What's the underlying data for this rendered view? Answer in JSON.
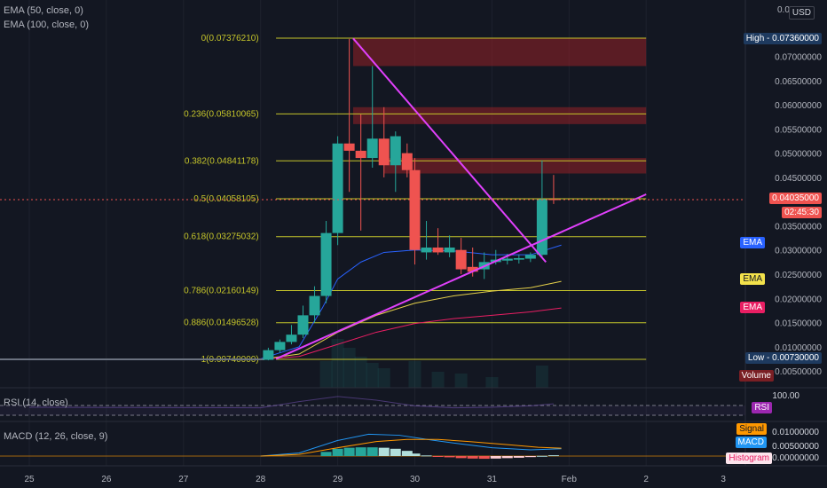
{
  "indicators": {
    "ema50": "EMA (50, close, 0)",
    "ema100": "EMA (100, close, 0)",
    "rsi": "RSI (14, close)",
    "macd": "MACD (12, 26, close, 9)"
  },
  "currency_button": "USD",
  "fib_levels": [
    {
      "label": "0(0.07376210)",
      "value": 0.0737621
    },
    {
      "label": "0.236(0.05810065)",
      "value": 0.05810065
    },
    {
      "label": "0.382(0.04841178)",
      "value": 0.04841178
    },
    {
      "label": "0.5(0.04058105)",
      "value": 0.04058105
    },
    {
      "label": "0.618(0.03275032)",
      "value": 0.03275032
    },
    {
      "label": "0.786(0.02160149)",
      "value": 0.02160149
    },
    {
      "label": "0.886(0.01496528)",
      "value": 0.01496528
    },
    {
      "label": "1(0.00740000)",
      "value": 0.0074
    }
  ],
  "price_axis": {
    "ticks": [
      "0.07000000",
      "0.06500000",
      "0.06000000",
      "0.05500000",
      "0.05000000",
      "0.04500000",
      "0.03500000",
      "0.03000000",
      "0.02500000",
      "0.02000000",
      "0.01500000",
      "0.01000000",
      "0.00500000"
    ],
    "top_partial": "0.0"
  },
  "axis_labels": {
    "high": "High - 0.07360000",
    "low": "Low - 0.00730000",
    "current_price": "0.04035000",
    "countdown": "02:45:30",
    "ema_blue": "EMA",
    "ema_yellow": "EMA",
    "ema_pink": "EMA",
    "volume": "Volume",
    "rsi": "RSI",
    "rsi_top": "100.00",
    "signal": "Signal",
    "macd": "MACD",
    "histogram": "Histogram",
    "macd_tick_1": "0.01000000",
    "macd_tick_2": "0.00500000",
    "macd_tick_3": "0.00000000"
  },
  "time_axis": [
    "25",
    "26",
    "27",
    "28",
    "29",
    "30",
    "31",
    "Feb",
    "2",
    "3"
  ],
  "colors": {
    "up": "#26a69a",
    "down": "#ef5350",
    "fib": "#c5c52a",
    "trend": "#e040fb",
    "ema_blue": "#2962ff",
    "ema_yellow": "#e5d04a",
    "ema_pink": "#e91e63"
  },
  "chart_data": {
    "type": "candlestick",
    "ylim": [
      0.0,
      0.0765
    ],
    "candles": [
      {
        "t": 28.1,
        "o": 0.0073,
        "h": 0.0098,
        "l": 0.0072,
        "c": 0.0093
      },
      {
        "t": 28.25,
        "o": 0.0093,
        "h": 0.0115,
        "l": 0.0088,
        "c": 0.011
      },
      {
        "t": 28.4,
        "o": 0.011,
        "h": 0.0145,
        "l": 0.0105,
        "c": 0.0125
      },
      {
        "t": 28.55,
        "o": 0.0125,
        "h": 0.0185,
        "l": 0.0118,
        "c": 0.0165
      },
      {
        "t": 28.7,
        "o": 0.0165,
        "h": 0.0225,
        "l": 0.015,
        "c": 0.0205
      },
      {
        "t": 28.85,
        "o": 0.0205,
        "h": 0.036,
        "l": 0.019,
        "c": 0.0335
      },
      {
        "t": 29.0,
        "o": 0.0335,
        "h": 0.0535,
        "l": 0.031,
        "c": 0.052
      },
      {
        "t": 29.15,
        "o": 0.052,
        "h": 0.0736,
        "l": 0.042,
        "c": 0.0505
      },
      {
        "t": 29.3,
        "o": 0.0505,
        "h": 0.058,
        "l": 0.034,
        "c": 0.049
      },
      {
        "t": 29.45,
        "o": 0.049,
        "h": 0.068,
        "l": 0.047,
        "c": 0.053
      },
      {
        "t": 29.6,
        "o": 0.053,
        "h": 0.0595,
        "l": 0.045,
        "c": 0.0475
      },
      {
        "t": 29.75,
        "o": 0.0475,
        "h": 0.0545,
        "l": 0.042,
        "c": 0.0535
      },
      {
        "t": 29.9,
        "o": 0.05,
        "h": 0.052,
        "l": 0.045,
        "c": 0.0465
      },
      {
        "t": 30.0,
        "o": 0.0465,
        "h": 0.049,
        "l": 0.027,
        "c": 0.03
      },
      {
        "t": 30.15,
        "o": 0.0295,
        "h": 0.036,
        "l": 0.028,
        "c": 0.0305
      },
      {
        "t": 30.3,
        "o": 0.0305,
        "h": 0.0345,
        "l": 0.029,
        "c": 0.0295
      },
      {
        "t": 30.45,
        "o": 0.0295,
        "h": 0.033,
        "l": 0.0285,
        "c": 0.0305
      },
      {
        "t": 30.6,
        "o": 0.03,
        "h": 0.0325,
        "l": 0.025,
        "c": 0.026
      },
      {
        "t": 30.75,
        "o": 0.0265,
        "h": 0.0305,
        "l": 0.0245,
        "c": 0.0255
      },
      {
        "t": 30.9,
        "o": 0.026,
        "h": 0.0295,
        "l": 0.024,
        "c": 0.0275
      },
      {
        "t": 31.05,
        "o": 0.0275,
        "h": 0.03,
        "l": 0.027,
        "c": 0.028
      },
      {
        "t": 31.2,
        "o": 0.0278,
        "h": 0.0292,
        "l": 0.027,
        "c": 0.0282
      },
      {
        "t": 31.35,
        "o": 0.028,
        "h": 0.029,
        "l": 0.0272,
        "c": 0.0283
      },
      {
        "t": 31.5,
        "o": 0.0282,
        "h": 0.0295,
        "l": 0.0275,
        "c": 0.029
      },
      {
        "t": 31.65,
        "o": 0.029,
        "h": 0.0485,
        "l": 0.0285,
        "c": 0.0405
      },
      {
        "t": 31.8,
        "o": 0.0405,
        "h": 0.0455,
        "l": 0.0395,
        "c": 0.0404
      }
    ],
    "ema_series": [
      {
        "color": "ema_blue",
        "points": [
          [
            28.0,
            0.0075
          ],
          [
            28.5,
            0.01
          ],
          [
            28.8,
            0.018
          ],
          [
            29.0,
            0.024
          ],
          [
            29.3,
            0.0275
          ],
          [
            29.6,
            0.0295
          ],
          [
            30.0,
            0.03
          ],
          [
            30.5,
            0.0298
          ],
          [
            31.0,
            0.029
          ],
          [
            31.5,
            0.029
          ],
          [
            31.9,
            0.031
          ]
        ]
      },
      {
        "color": "ema_yellow",
        "points": [
          [
            28.0,
            0.0074
          ],
          [
            28.5,
            0.0085
          ],
          [
            29.0,
            0.013
          ],
          [
            29.5,
            0.0165
          ],
          [
            30.0,
            0.019
          ],
          [
            30.5,
            0.0205
          ],
          [
            31.0,
            0.0215
          ],
          [
            31.5,
            0.0222
          ],
          [
            31.9,
            0.0235
          ]
        ]
      },
      {
        "color": "ema_pink",
        "points": [
          [
            28.0,
            0.0074
          ],
          [
            28.5,
            0.008
          ],
          [
            29.0,
            0.0105
          ],
          [
            29.5,
            0.013
          ],
          [
            30.0,
            0.0148
          ],
          [
            30.5,
            0.0158
          ],
          [
            31.0,
            0.0165
          ],
          [
            31.5,
            0.0172
          ],
          [
            31.9,
            0.018
          ]
        ]
      }
    ],
    "trendlines": [
      {
        "from": [
          29.2,
          0.0737
        ],
        "to": [
          31.7,
          0.0275
        ]
      },
      {
        "from": [
          28.2,
          0.0075
        ],
        "to": [
          33.0,
          0.0415
        ]
      }
    ],
    "zones": [
      {
        "t0": 29.2,
        "t1": 33.0,
        "y0": 0.068,
        "y1": 0.0737
      },
      {
        "t0": 29.2,
        "t1": 33.0,
        "y0": 0.056,
        "y1": 0.0595
      },
      {
        "t0": 29.6,
        "t1": 33.0,
        "y0": 0.0458,
        "y1": 0.049
      }
    ],
    "macd_hist": [
      {
        "t": 28.85,
        "v": 0.002
      },
      {
        "t": 29.0,
        "v": 0.0035
      },
      {
        "t": 29.15,
        "v": 0.004
      },
      {
        "t": 29.3,
        "v": 0.0042
      },
      {
        "t": 29.45,
        "v": 0.0042
      },
      {
        "t": 29.6,
        "v": 0.004
      },
      {
        "t": 29.75,
        "v": 0.0035
      },
      {
        "t": 29.9,
        "v": 0.0025
      },
      {
        "t": 30.0,
        "v": 0.0012
      },
      {
        "t": 30.15,
        "v": 0.0003
      },
      {
        "t": 30.3,
        "v": -0.0003
      },
      {
        "t": 30.45,
        "v": -0.0006
      },
      {
        "t": 30.6,
        "v": -0.001
      },
      {
        "t": 30.75,
        "v": -0.0012
      },
      {
        "t": 30.9,
        "v": -0.0013
      },
      {
        "t": 31.05,
        "v": -0.0012
      },
      {
        "t": 31.2,
        "v": -0.001
      },
      {
        "t": 31.35,
        "v": -0.0008
      },
      {
        "t": 31.5,
        "v": -0.0005
      },
      {
        "t": 31.65,
        "v": 0.0001
      },
      {
        "t": 31.8,
        "v": 0.0004
      }
    ],
    "macd_line": [
      [
        28.0,
        0.0
      ],
      [
        28.5,
        0.0015
      ],
      [
        29.0,
        0.0075
      ],
      [
        29.4,
        0.0105
      ],
      [
        29.8,
        0.01
      ],
      [
        30.2,
        0.0078
      ],
      [
        30.6,
        0.0058
      ],
      [
        31.0,
        0.004
      ],
      [
        31.5,
        0.003
      ],
      [
        31.9,
        0.0035
      ]
    ],
    "signal_line": [
      [
        28.0,
        0.0
      ],
      [
        28.5,
        0.0008
      ],
      [
        29.0,
        0.004
      ],
      [
        29.5,
        0.007
      ],
      [
        29.9,
        0.008
      ],
      [
        30.3,
        0.008
      ],
      [
        30.7,
        0.007
      ],
      [
        31.2,
        0.0055
      ],
      [
        31.6,
        0.0042
      ],
      [
        31.9,
        0.0038
      ]
    ],
    "macd_ylim": [
      -0.0015,
      0.0128
    ],
    "rsi_ylim": [
      0,
      100
    ]
  }
}
